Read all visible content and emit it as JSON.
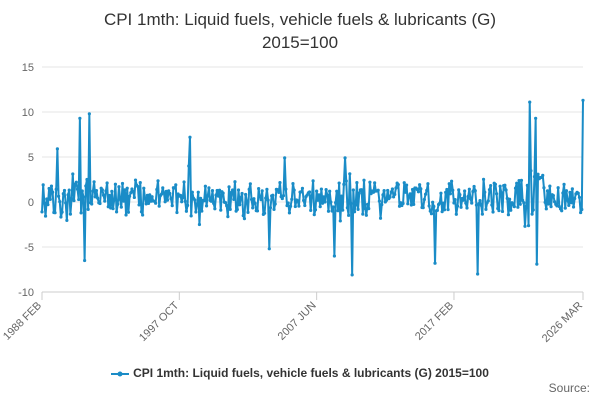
{
  "chart_data": {
    "type": "line",
    "title_line1": "CPI 1mth: Liquid fuels, vehicle fuels & lubricants (G)",
    "title_line2": "2015=100",
    "xlabel": "",
    "ylabel": "",
    "ylim": [
      -10,
      15
    ],
    "yticks": [
      "-10",
      "-5",
      "0",
      "5",
      "10",
      "15"
    ],
    "ytick_values": [
      -10,
      -5,
      0,
      5,
      10,
      15
    ],
    "xticks": [
      "1988 FEB",
      "1997 OCT",
      "2007 JUN",
      "2017 FEB",
      "2026 MAR"
    ],
    "xtick_years": [
      1988.083,
      1997.75,
      2007.417,
      2017.083,
      2026.167
    ],
    "x_start": "1988 FEB",
    "x_end": "2026 MAR",
    "frequency": "monthly",
    "grid": "horizontal",
    "legend_position": "bottom",
    "series": [
      {
        "name": "CPI 1mth: Liquid fuels, vehicle fuels & lubricants (G) 2015=100",
        "color": "#1a8cc7",
        "highlights": [
          {
            "date": "1988 FEB",
            "value": -1.1
          },
          {
            "date": "1988 MAR",
            "value": 1.9
          },
          {
            "date": "1989 MAR",
            "value": 5.9
          },
          {
            "date": "1990 OCT",
            "value": 9.3
          },
          {
            "date": "1991 FEB",
            "value": -6.5
          },
          {
            "date": "1991 JUN",
            "value": 9.8
          },
          {
            "date": "1998 JUL",
            "value": 7.2
          },
          {
            "date": "1999 MAR",
            "value": -2.5
          },
          {
            "date": "2004 FEB",
            "value": -5.2
          },
          {
            "date": "2005 MAR",
            "value": 4.9
          },
          {
            "date": "2008 SEP",
            "value": -6.0
          },
          {
            "date": "2009 JUN",
            "value": 4.9
          },
          {
            "date": "2009 DEC",
            "value": -8.1
          },
          {
            "date": "2015 OCT",
            "value": -6.8
          },
          {
            "date": "2018 OCT",
            "value": -8.0
          },
          {
            "date": "2022 JUN",
            "value": 11.1
          },
          {
            "date": "2022 NOV",
            "value": 9.3
          },
          {
            "date": "2022 DEC",
            "value": -6.9
          },
          {
            "date": "2026 MAR",
            "value": 11.3
          }
        ]
      }
    ]
  },
  "legend": {
    "label": "CPI 1mth: Liquid fuels, vehicle fuels & lubricants (G) 2015=100"
  },
  "credit": {
    "label": "Source:"
  }
}
